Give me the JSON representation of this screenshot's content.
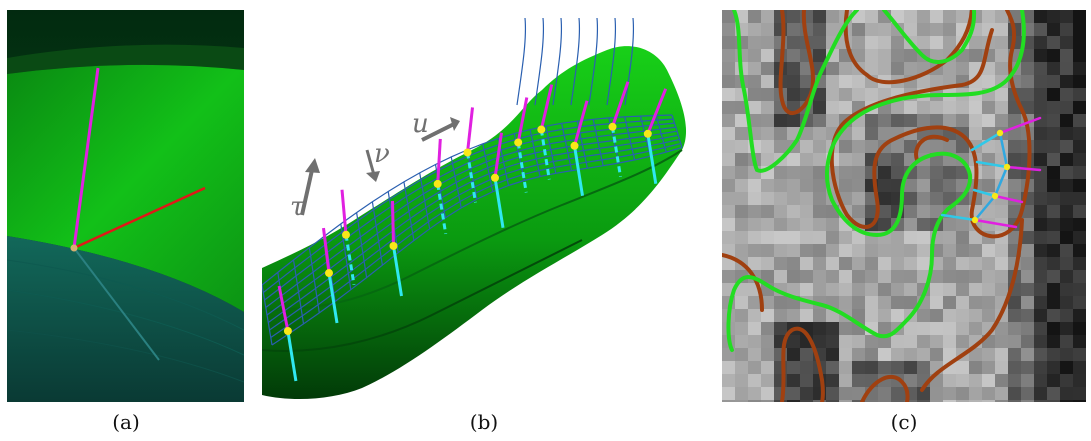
{
  "figure": {
    "panels": [
      {
        "id": "a",
        "caption": "(a)"
      },
      {
        "id": "b",
        "caption": "(b)",
        "labels": {
          "tau": "τ",
          "nu": "ν",
          "u": "u"
        }
      },
      {
        "id": "c",
        "caption": "(c)"
      }
    ]
  },
  "colors": {
    "surface_green": "#10c010",
    "dark_green": "#003a10",
    "teal_region": "#0c4a44",
    "normal_magenta": "#e020e0",
    "tangent_red": "#e01818",
    "inner_cyan": "#30e8f0",
    "grid_blue": "#2a5fb0",
    "vertex_yellow": "#f8e818",
    "contour_green": "#22dd22",
    "contour_brown": "#a04010",
    "arrow_gray": "#707070"
  }
}
